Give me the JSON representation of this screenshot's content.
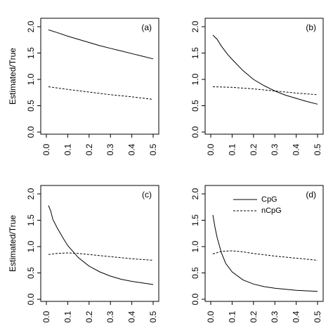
{
  "chart_data": [
    {
      "type": "line",
      "panel_label": "(a)",
      "ylabel": "Estimated/True",
      "xlim": [
        0,
        0.5
      ],
      "ylim": [
        0,
        2.0
      ],
      "xticks": [
        "0.0",
        "0.1",
        "0.2",
        "0.3",
        "0.4",
        "0.5"
      ],
      "yticks": [
        "0.0",
        "0.5",
        "1.0",
        "1.5",
        "2.0"
      ],
      "series": [
        {
          "name": "CpG",
          "style": "solid",
          "x": [
            0.01,
            0.05,
            0.1,
            0.15,
            0.2,
            0.25,
            0.3,
            0.35,
            0.4,
            0.45,
            0.5
          ],
          "values": [
            1.94,
            1.89,
            1.82,
            1.76,
            1.7,
            1.64,
            1.59,
            1.54,
            1.49,
            1.44,
            1.39
          ]
        },
        {
          "name": "nCpG",
          "style": "dashed",
          "x": [
            0.01,
            0.1,
            0.2,
            0.3,
            0.4,
            0.5
          ],
          "values": [
            0.86,
            0.81,
            0.76,
            0.71,
            0.67,
            0.62
          ]
        }
      ]
    },
    {
      "type": "line",
      "panel_label": "(b)",
      "ylabel": "",
      "xlim": [
        0,
        0.5
      ],
      "ylim": [
        0,
        2.0
      ],
      "xticks": [
        "0.0",
        "0.1",
        "0.2",
        "0.3",
        "0.4",
        "0.5"
      ],
      "yticks": [
        "0.0",
        "0.5",
        "1.0",
        "1.5",
        "2.0"
      ],
      "series": [
        {
          "name": "CpG",
          "style": "solid",
          "x": [
            0.01,
            0.03,
            0.05,
            0.08,
            0.1,
            0.15,
            0.2,
            0.25,
            0.3,
            0.35,
            0.4,
            0.45,
            0.5
          ],
          "values": [
            1.84,
            1.76,
            1.63,
            1.47,
            1.38,
            1.17,
            1.0,
            0.88,
            0.78,
            0.7,
            0.64,
            0.58,
            0.53
          ]
        },
        {
          "name": "nCpG",
          "style": "dashed",
          "x": [
            0.01,
            0.1,
            0.2,
            0.3,
            0.4,
            0.5
          ],
          "values": [
            0.86,
            0.85,
            0.82,
            0.78,
            0.74,
            0.71
          ]
        }
      ]
    },
    {
      "type": "line",
      "panel_label": "(c)",
      "ylabel": "Estimated/True",
      "xlim": [
        0,
        0.5
      ],
      "ylim": [
        0,
        2.0
      ],
      "xticks": [
        "0.0",
        "0.1",
        "0.2",
        "0.3",
        "0.4",
        "0.5"
      ],
      "yticks": [
        "0.0",
        "0.5",
        "1.0",
        "1.5",
        "2.0"
      ],
      "series": [
        {
          "name": "CpG",
          "style": "solid",
          "x": [
            0.01,
            0.02,
            0.03,
            0.05,
            0.08,
            0.1,
            0.15,
            0.2,
            0.25,
            0.3,
            0.35,
            0.4,
            0.45,
            0.5
          ],
          "values": [
            1.78,
            1.68,
            1.52,
            1.36,
            1.15,
            1.02,
            0.79,
            0.63,
            0.52,
            0.44,
            0.38,
            0.34,
            0.31,
            0.28
          ]
        },
        {
          "name": "nCpG",
          "style": "dashed",
          "x": [
            0.01,
            0.05,
            0.1,
            0.15,
            0.2,
            0.3,
            0.4,
            0.5
          ],
          "values": [
            0.85,
            0.87,
            0.88,
            0.87,
            0.85,
            0.81,
            0.77,
            0.74
          ]
        }
      ]
    },
    {
      "type": "line",
      "panel_label": "(d)",
      "ylabel": "",
      "xlim": [
        0,
        0.5
      ],
      "ylim": [
        0,
        2.0
      ],
      "xticks": [
        "0.0",
        "0.1",
        "0.2",
        "0.3",
        "0.4",
        "0.5"
      ],
      "yticks": [
        "0.0",
        "0.5",
        "1.0",
        "1.5",
        "2.0"
      ],
      "legend": {
        "position": "top-right",
        "entries": [
          {
            "name": "CpG",
            "style": "solid"
          },
          {
            "name": "nCpG",
            "style": "dashed"
          }
        ]
      },
      "series": [
        {
          "name": "CpG",
          "style": "solid",
          "x": [
            0.01,
            0.02,
            0.03,
            0.05,
            0.07,
            0.1,
            0.15,
            0.2,
            0.25,
            0.3,
            0.35,
            0.4,
            0.45,
            0.5
          ],
          "values": [
            1.6,
            1.36,
            1.17,
            0.88,
            0.68,
            0.52,
            0.37,
            0.29,
            0.24,
            0.21,
            0.19,
            0.17,
            0.16,
            0.15
          ]
        },
        {
          "name": "nCpG",
          "style": "dashed",
          "x": [
            0.01,
            0.05,
            0.1,
            0.15,
            0.2,
            0.3,
            0.4,
            0.5
          ],
          "values": [
            0.86,
            0.91,
            0.92,
            0.9,
            0.87,
            0.82,
            0.78,
            0.74
          ]
        }
      ]
    }
  ]
}
